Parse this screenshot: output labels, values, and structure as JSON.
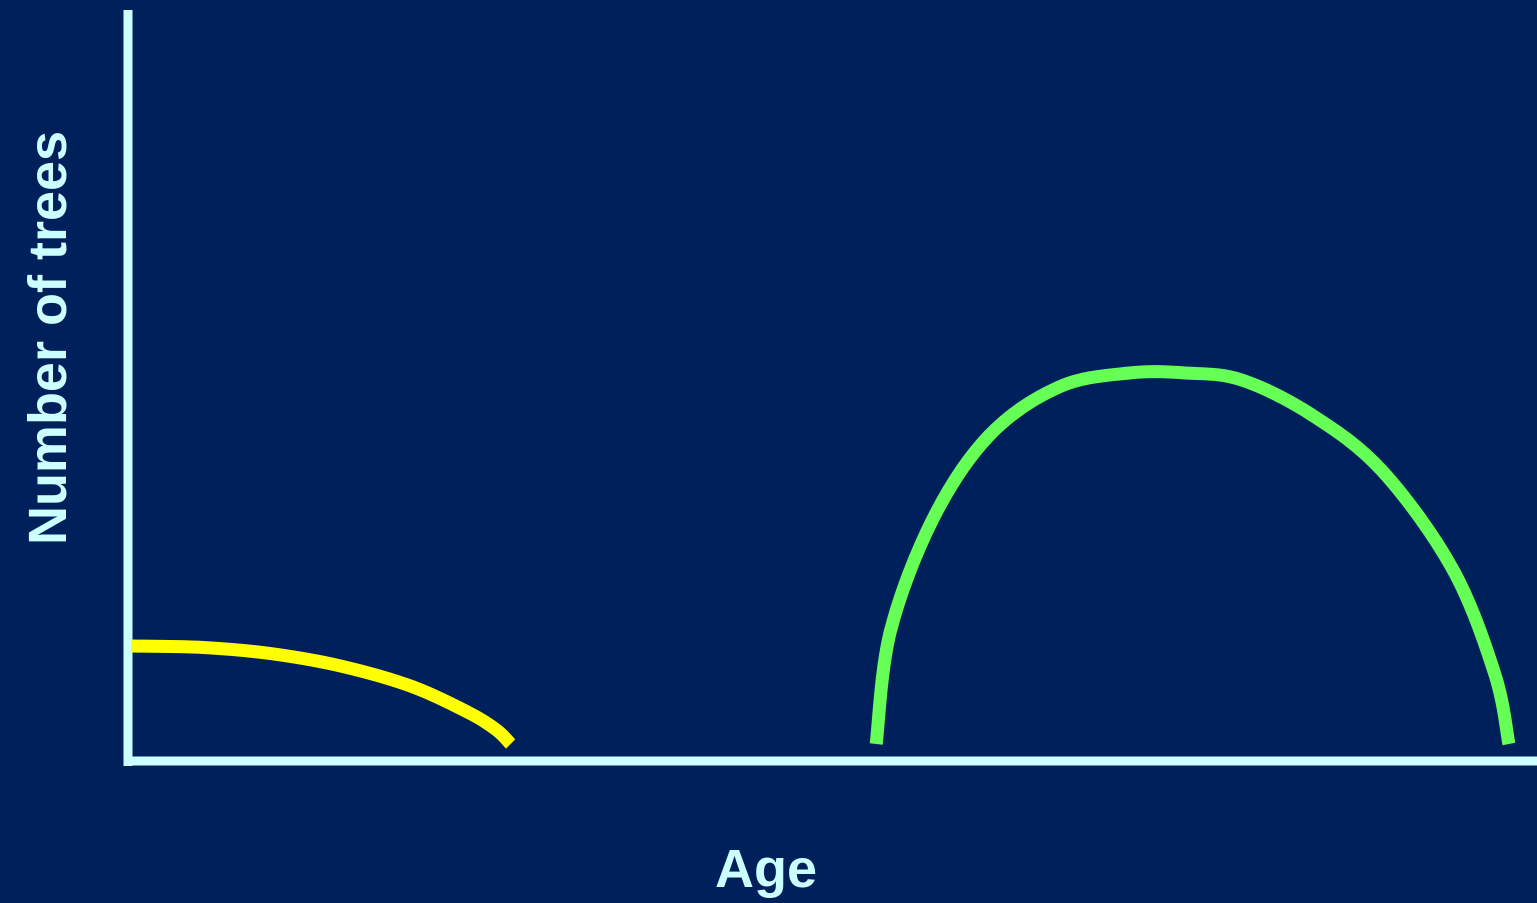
{
  "chart_data": {
    "type": "line",
    "title": "",
    "xlabel": "Age",
    "ylabel": "Number of trees",
    "grid": false,
    "legend": "none",
    "xlim": [
      0,
      100
    ],
    "ylim": [
      0,
      100
    ],
    "series": [
      {
        "color": "#ffff00",
        "x": [
          0,
          5,
          10,
          15,
          20,
          24,
          26,
          27
        ],
        "y": [
          14,
          13.8,
          12.9,
          11.1,
          8.2,
          4.5,
          2,
          0
        ]
      },
      {
        "color": "#66ff55",
        "x": [
          53,
          54,
          57,
          61,
          66,
          71,
          75,
          79,
          84,
          89,
          94,
          97,
          98
        ],
        "y": [
          0,
          16,
          32,
          44,
          51,
          53,
          53,
          52,
          47,
          39,
          25,
          10,
          0
        ]
      }
    ]
  },
  "colors": {
    "background": "#00205c",
    "axes": "#ccffff",
    "labels": "#ccffff"
  }
}
